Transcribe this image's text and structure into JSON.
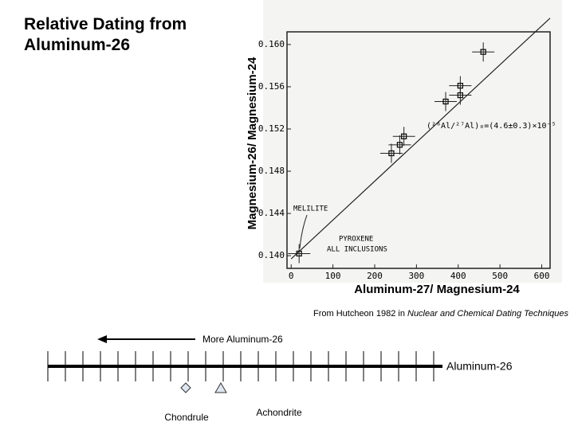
{
  "title": "Relative Dating from Aluminum-26",
  "citation": {
    "text": "From Hutcheon 1982 in",
    "source": "Nuclear and Chemical Dating Techniques"
  },
  "chart_data": {
    "type": "scatter",
    "x_label": "Aluminum-27/ Magnesium-24",
    "y_label": "Magnesium-26/ Magnesium-24",
    "x": [
      19,
      240,
      260,
      270,
      370,
      405,
      405,
      460
    ],
    "values": [
      0.1402,
      0.1497,
      0.1505,
      0.1513,
      0.1546,
      0.1561,
      0.1552,
      0.1593
    ],
    "fit": {
      "x": [
        0,
        620
      ],
      "y": [
        0.1397,
        0.1625
      ]
    },
    "xlim": [
      -10,
      620
    ],
    "xticks": [
      0,
      100,
      200,
      300,
      400,
      500,
      600
    ],
    "ylim": [
      0.1388,
      0.1612
    ],
    "yticks": [
      {
        "value": 0.14,
        "label": "0.140"
      },
      {
        "value": 0.144,
        "label": "0.144"
      },
      {
        "value": 0.148,
        "label": "0.148"
      },
      {
        "value": 0.152,
        "label": "0.152"
      },
      {
        "value": 0.156,
        "label": "0.156"
      },
      {
        "value": 0.16,
        "label": "0.160"
      }
    ],
    "annotations": [
      "MELILITE",
      "PYROXENE",
      "ALL INCLUSIONS",
      "(²⁶Al/²⁷Al)₀=(4.6±0.3)×10⁻⁵"
    ]
  },
  "timeline": {
    "arrow_label": "More Aluminum-26",
    "axis_label": "Aluminum-26",
    "markers": [
      "Chondrule",
      "Achondrite"
    ]
  }
}
